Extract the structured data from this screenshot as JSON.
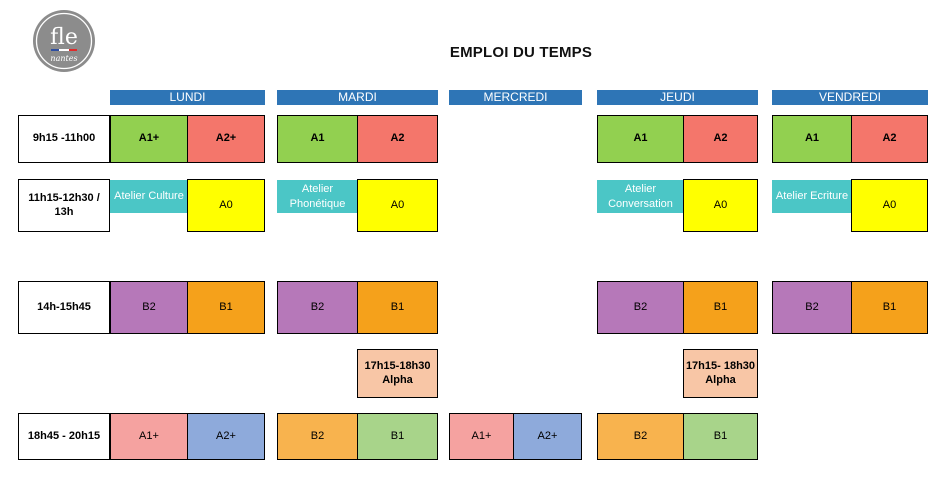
{
  "title": "EMPLOI DU TEMPS",
  "logo": {
    "word": "fle",
    "sub": "nantes"
  },
  "days": [
    "LUNDI",
    "MARDI",
    "MERCREDI",
    "JEUDI",
    "VENDREDI"
  ],
  "times": [
    "9h15 -11h00",
    "11h15-12h30 / 13h",
    "14h-15h45",
    "18h45 - 20h15"
  ],
  "colors": {
    "green": "#92d050",
    "red": "#f4766b",
    "yellow": "#ffff00",
    "teal": "#4bc6c6",
    "purple": "#b678b9",
    "orange": "#f5a11b",
    "peach": "#f8c6a6",
    "pink": "#f5a2a0",
    "blue": "#8eaadb",
    "lightorange": "#f8b34e",
    "lightgreen": "#a8d48a",
    "header": "#2e75b6"
  },
  "row1": {
    "lundi": [
      "A1+",
      "A2+"
    ],
    "mardi": [
      "A1",
      "A2"
    ],
    "jeudi": [
      "A1",
      "A2"
    ],
    "vendredi": [
      "A1",
      "A2"
    ]
  },
  "row2": {
    "lundi": {
      "atelier": "Atelier Culture",
      "level": "A0"
    },
    "mardi": {
      "atelier": "Atelier Phonétique",
      "level": "A0"
    },
    "jeudi": {
      "atelier": "Atelier Conversation",
      "level": "A0"
    },
    "vendredi": {
      "atelier": "Atelier Ecriture",
      "level": "A0"
    }
  },
  "row3": {
    "lundi": [
      "B2",
      "B1"
    ],
    "mardi": [
      "B2",
      "B1"
    ],
    "jeudi": [
      "B2",
      "B1"
    ],
    "vendredi": [
      "B2",
      "B1"
    ]
  },
  "alpha": {
    "mardi": "17h15-18h30 Alpha",
    "jeudi": "17h15- 18h30 Alpha"
  },
  "row4": {
    "lundi": [
      "A1+",
      "A2+"
    ],
    "mardi": [
      "B2",
      "B1"
    ],
    "mercredi": [
      "A1+",
      "A2+"
    ],
    "jeudi": [
      "B2",
      "B1"
    ]
  }
}
